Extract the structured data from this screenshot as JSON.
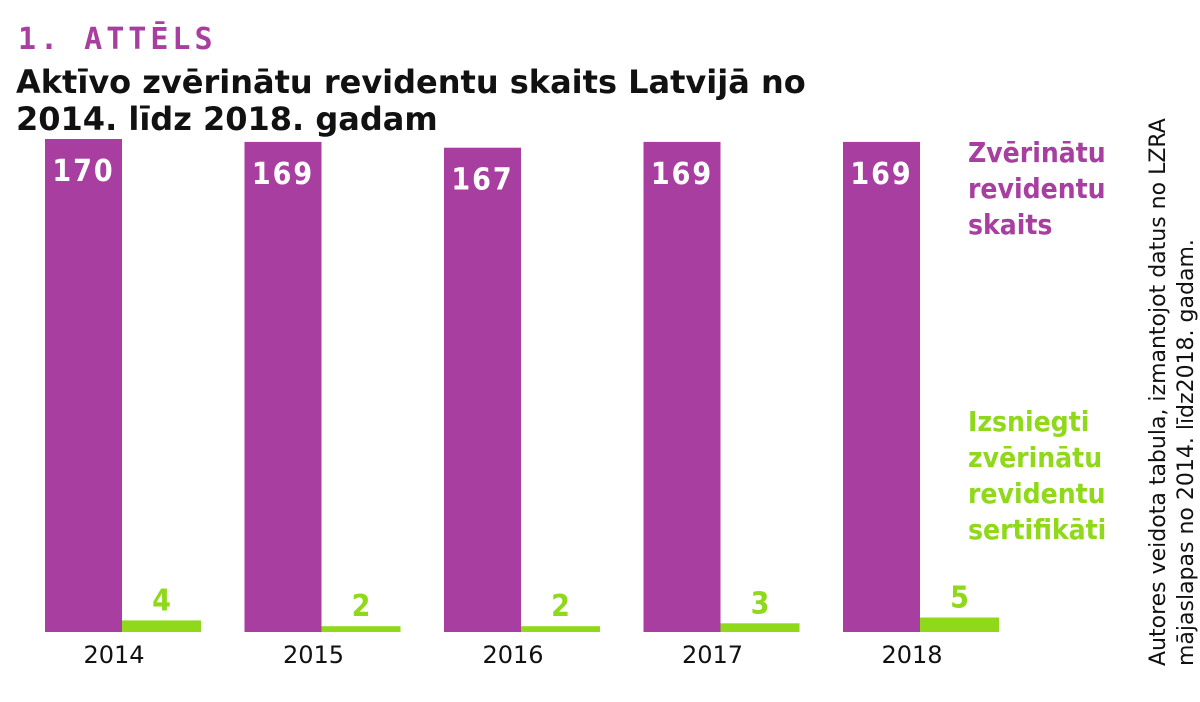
{
  "figure_label": "1. ATTĒLS",
  "source_note": "Autores veidota tabula, izmantojot datus no LZRA mājaslapas no 2014. līdz2018. gadam.",
  "colors": {
    "series_0": "#a83fa0",
    "series_1": "#8fd81a",
    "text": "#111111",
    "bar_label_inside": "#ffffff"
  },
  "chart_data": {
    "type": "bar",
    "title": "Aktīvo zvērinātu revidentu skaits Latvijā no 2014. līdz 2018. gadam",
    "categories": [
      "2014",
      "2015",
      "2016",
      "2017",
      "2018"
    ],
    "series": [
      {
        "name": "Zvērinātu revidentu skaits",
        "values": [
          170,
          169,
          167,
          169,
          169
        ]
      },
      {
        "name": "Izsniegti zvērinātu revidentu sertifikāti",
        "values": [
          4,
          2,
          2,
          3,
          5
        ]
      }
    ],
    "data_labels": true,
    "grid": false,
    "y_axis_shown": false,
    "legend_position": "right"
  }
}
